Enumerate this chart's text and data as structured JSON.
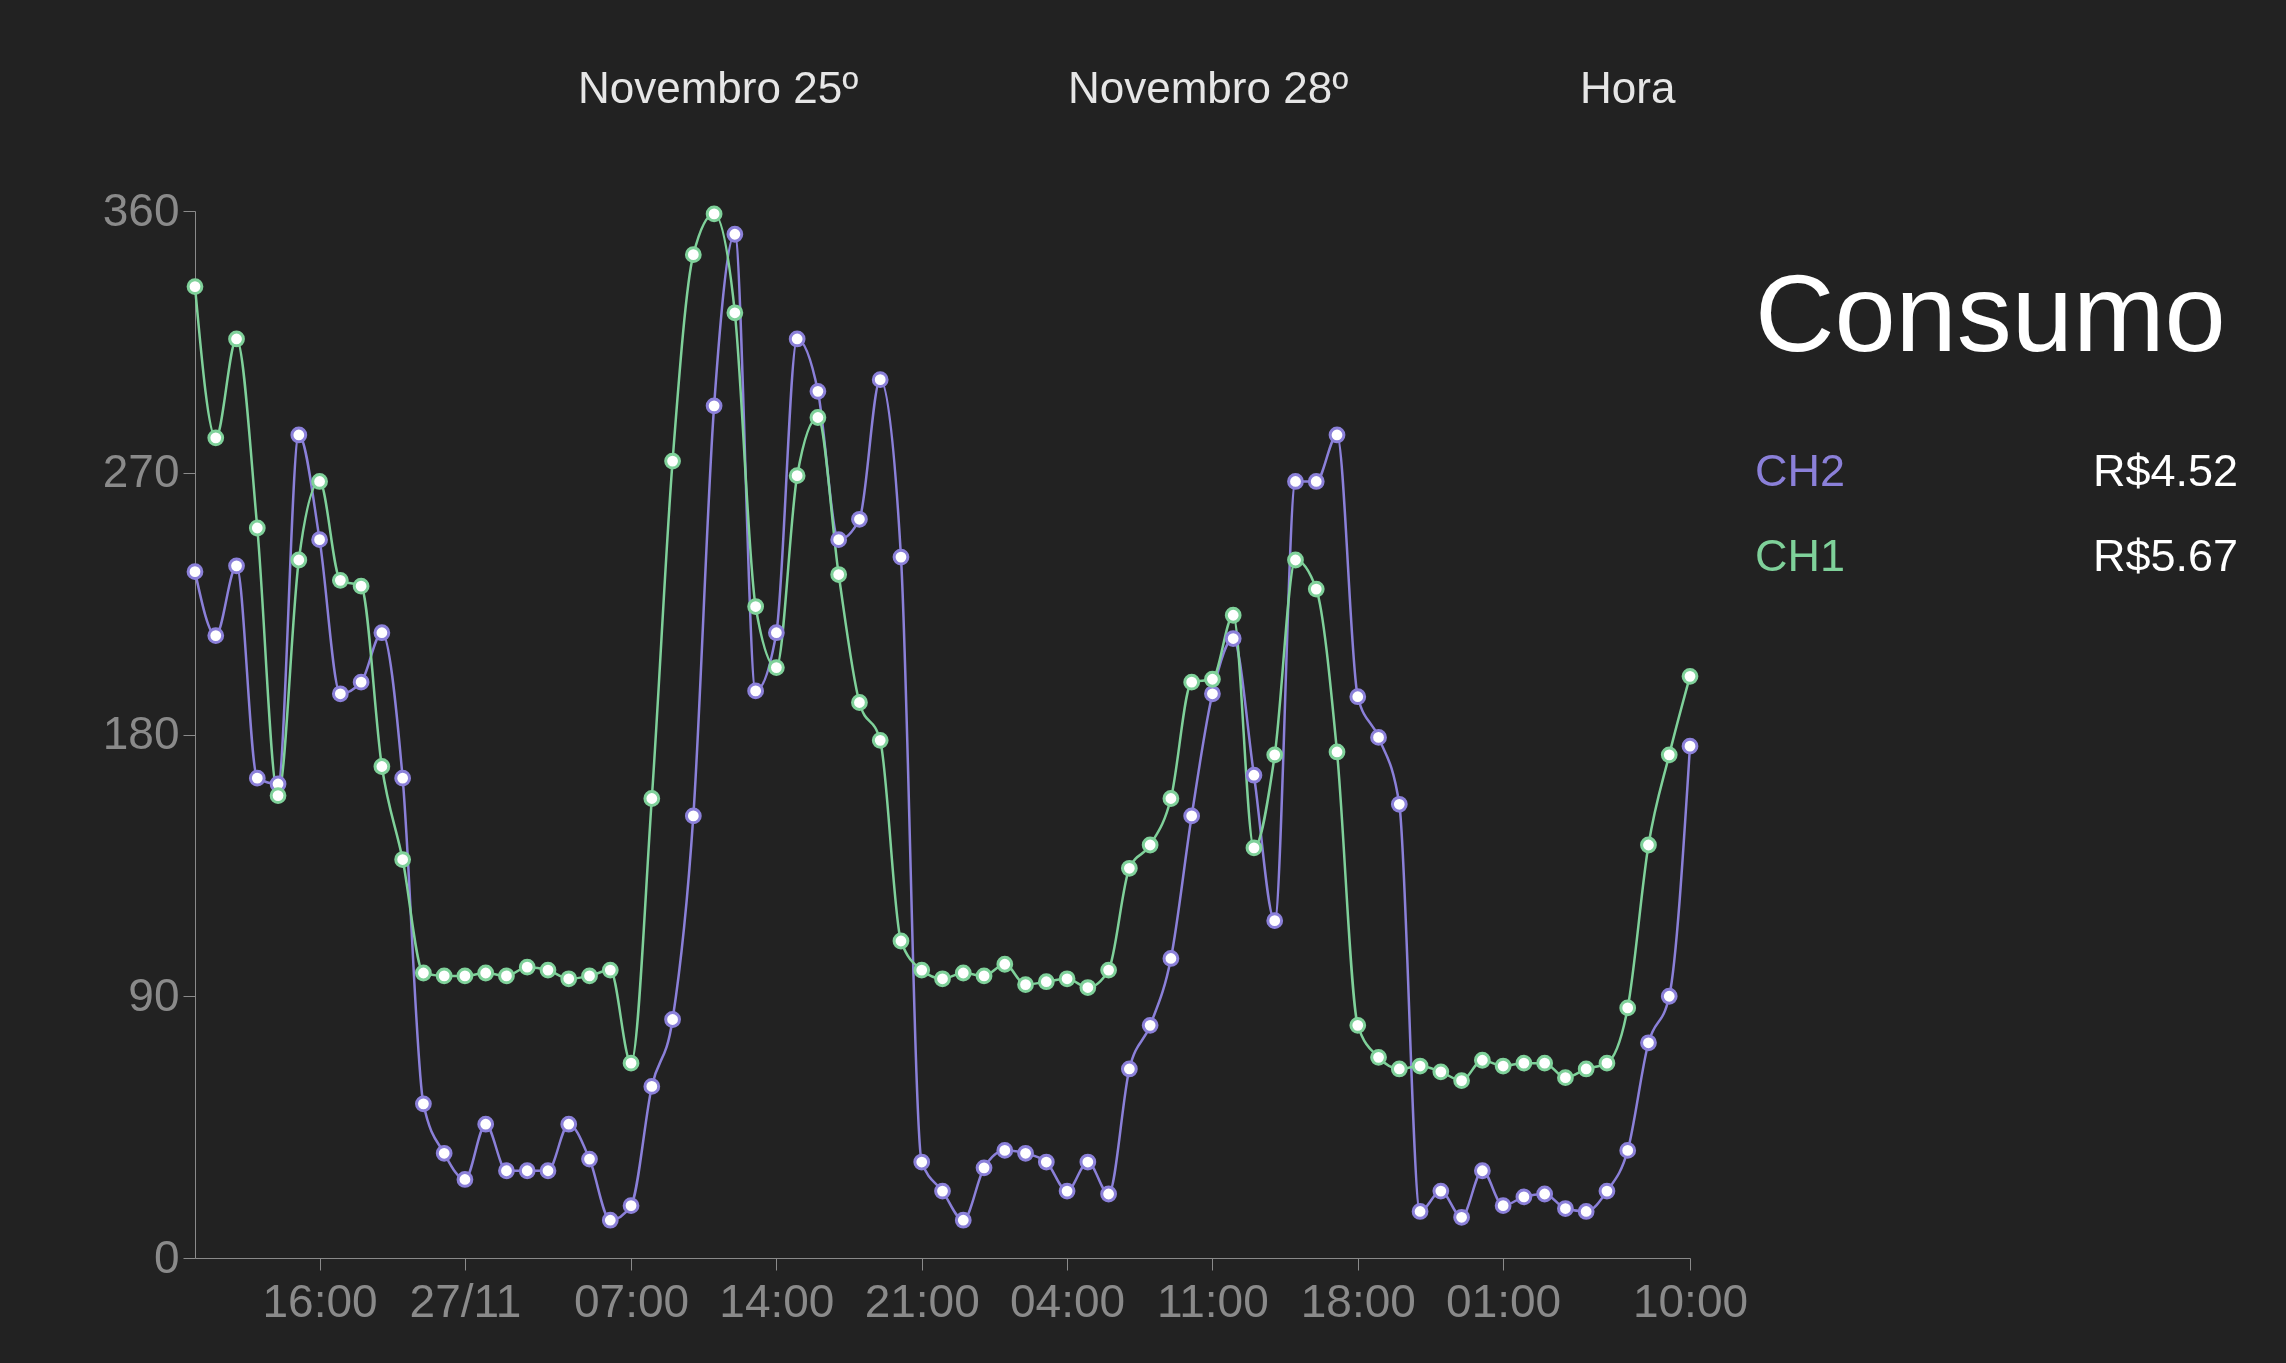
{
  "chart_data": {
    "type": "line",
    "title": "Consumo",
    "categories": [
      null,
      null,
      null,
      null,
      null,
      null,
      "16:00",
      null,
      null,
      null,
      null,
      null,
      null,
      "27/11",
      null,
      null,
      null,
      null,
      null,
      null,
      null,
      "07:00",
      null,
      null,
      null,
      null,
      null,
      null,
      "14:00",
      null,
      null,
      null,
      null,
      null,
      null,
      "21:00",
      null,
      null,
      null,
      null,
      null,
      null,
      "04:00",
      null,
      null,
      null,
      null,
      null,
      null,
      "11:00",
      null,
      null,
      null,
      null,
      null,
      null,
      "18:00",
      null,
      null,
      null,
      null,
      null,
      null,
      "01:00",
      null,
      null,
      null,
      null,
      null,
      null,
      null,
      null,
      "10:00"
    ],
    "ylim": [
      0,
      360
    ],
    "yticks": [
      0,
      90,
      180,
      270,
      360
    ],
    "grid": false,
    "marker": "circle",
    "legend": "right",
    "series": [
      {
        "name": "CH2",
        "color": "#8b80d9",
        "values": [
          236,
          214,
          238,
          165,
          163,
          283,
          247,
          194,
          198,
          215,
          165,
          53,
          36,
          27,
          46,
          30,
          30,
          30,
          46,
          34,
          13,
          18,
          59,
          82,
          152,
          293,
          352,
          195,
          215,
          316,
          298,
          247,
          254,
          302,
          241,
          33,
          23,
          13,
          31,
          37,
          36,
          33,
          23,
          33,
          22,
          65,
          80,
          103,
          152,
          194,
          213,
          166,
          116,
          267,
          267,
          283,
          193,
          179,
          156,
          16,
          23,
          14,
          30,
          18,
          21,
          22,
          17,
          16,
          23,
          37,
          74,
          90,
          176
        ]
      },
      {
        "name": "CH1",
        "color": "#7fd19a",
        "values": [
          334,
          282,
          316,
          251,
          159,
          240,
          267,
          233,
          231,
          169,
          137,
          98,
          97,
          97,
          98,
          97,
          100,
          99,
          96,
          97,
          99,
          67,
          158,
          274,
          345,
          359,
          325,
          224,
          203,
          269,
          289,
          235,
          191,
          178,
          109,
          99,
          96,
          98,
          97,
          101,
          94,
          95,
          96,
          93,
          99,
          134,
          142,
          158,
          198,
          199,
          221,
          141,
          173,
          240,
          230,
          174,
          80,
          69,
          65,
          66,
          64,
          61,
          68,
          66,
          67,
          67,
          62,
          65,
          67,
          86,
          142,
          173,
          200
        ]
      }
    ],
    "annotations": [
      "Novembro 25º",
      "Novembro 28º",
      "Hora",
      "R$4.52",
      "R$5.67"
    ]
  }
}
